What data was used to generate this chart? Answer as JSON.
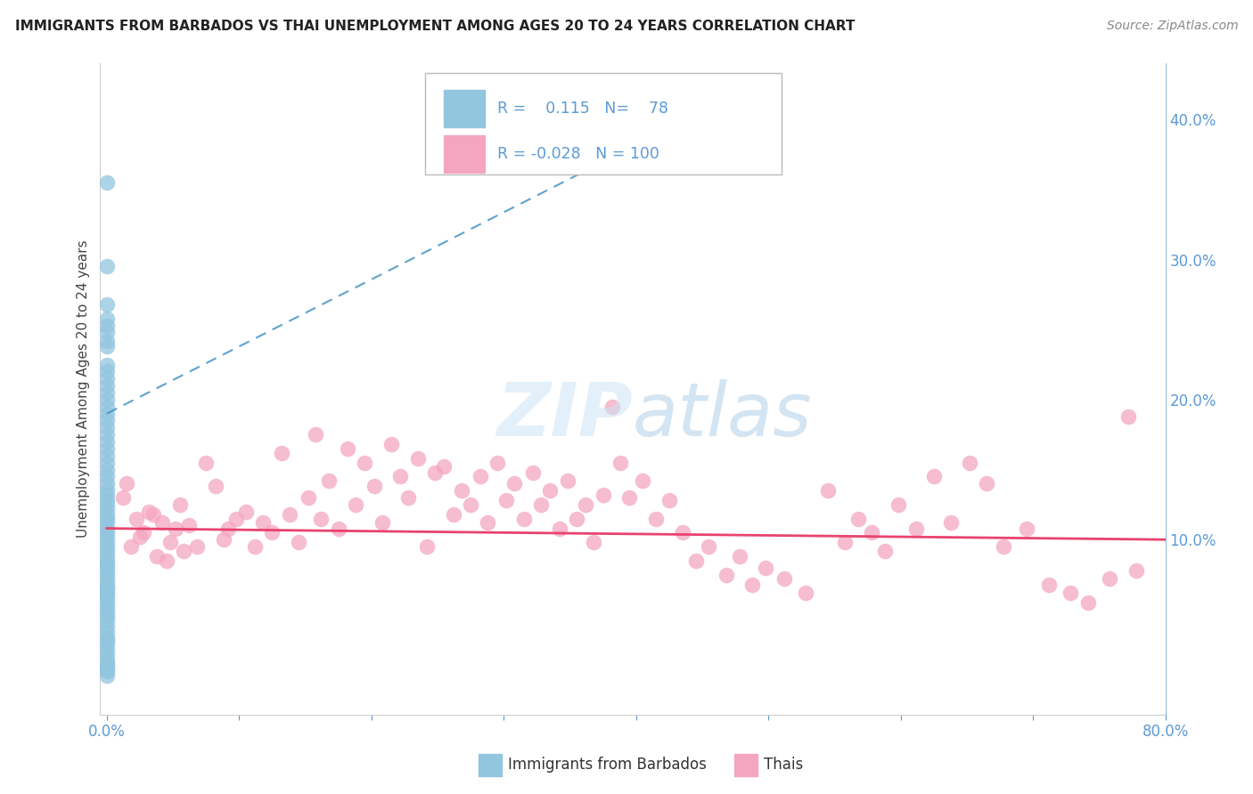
{
  "title": "IMMIGRANTS FROM BARBADOS VS THAI UNEMPLOYMENT AMONG AGES 20 TO 24 YEARS CORRELATION CHART",
  "source": "Source: ZipAtlas.com",
  "ylabel": "Unemployment Among Ages 20 to 24 years",
  "xlim": [
    -0.005,
    0.8
  ],
  "ylim": [
    -0.025,
    0.44
  ],
  "xtick_positions": [
    0.0,
    0.1,
    0.2,
    0.3,
    0.4,
    0.5,
    0.6,
    0.7,
    0.8
  ],
  "xticklabels": [
    "0.0%",
    "",
    "",
    "",
    "",
    "",
    "",
    "",
    "80.0%"
  ],
  "yticks_right": [
    0.1,
    0.2,
    0.3,
    0.4
  ],
  "yticklabels_right": [
    "10.0%",
    "20.0%",
    "30.0%",
    "40.0%"
  ],
  "legend_blue_r": "0.115",
  "legend_blue_n": "78",
  "legend_pink_r": "-0.028",
  "legend_pink_n": "100",
  "watermark": "ZIPatlas",
  "blue_color": "#92c5de",
  "pink_color": "#f4a6c0",
  "blue_line_color": "#4393c3",
  "pink_line_color": "#e8436e",
  "tick_label_color": "#5b9bd5",
  "grid_color": "#d0d0d0",
  "background_color": "#ffffff",
  "blue_regression_x0": 0.0,
  "blue_regression_y0": 0.19,
  "blue_regression_x1": 0.48,
  "blue_regression_y1": 0.42,
  "pink_regression_x0": 0.0,
  "pink_regression_y0": 0.108,
  "pink_regression_x1": 0.8,
  "pink_regression_y1": 0.1
}
